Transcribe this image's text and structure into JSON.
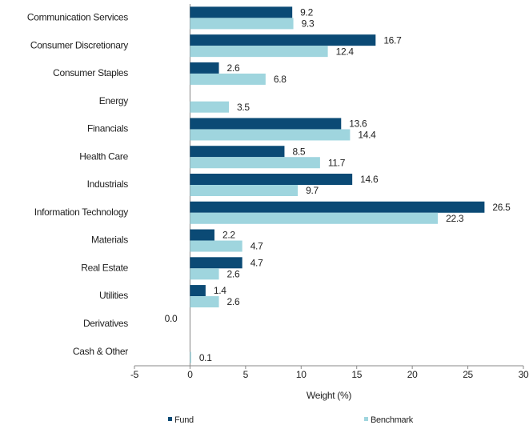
{
  "chart_data": {
    "type": "hbar",
    "xlabel": "Weight (%)",
    "categories": [
      "Communication Services",
      "Consumer Discretionary",
      "Consumer Staples",
      "Energy",
      "Financials",
      "Health Care",
      "Industrials",
      "Information Technology",
      "Materials",
      "Real Estate",
      "Utilities",
      "Derivatives",
      "Cash & Other"
    ],
    "series": [
      {
        "name": "Fund",
        "color": "#0b4a75",
        "values": [
          9.2,
          16.7,
          2.6,
          null,
          13.6,
          8.5,
          14.6,
          26.5,
          2.2,
          4.7,
          1.4,
          0.0,
          null
        ],
        "value_labels": [
          "9.2",
          "16.7",
          "2.6",
          null,
          "13.6",
          "8.5",
          "14.6",
          "26.5",
          "2.2",
          "4.7",
          "1.4",
          "0.0",
          null
        ]
      },
      {
        "name": "Benchmark",
        "color": "#9fd5de",
        "values": [
          9.3,
          12.4,
          6.8,
          3.5,
          14.4,
          11.7,
          9.7,
          22.3,
          4.7,
          2.6,
          2.6,
          null,
          0.1
        ]
      }
    ],
    "xlim": [
      -5,
      30
    ],
    "xticks": [
      -5,
      0,
      5,
      10,
      15,
      20,
      25,
      30
    ],
    "legend": "bottom"
  }
}
